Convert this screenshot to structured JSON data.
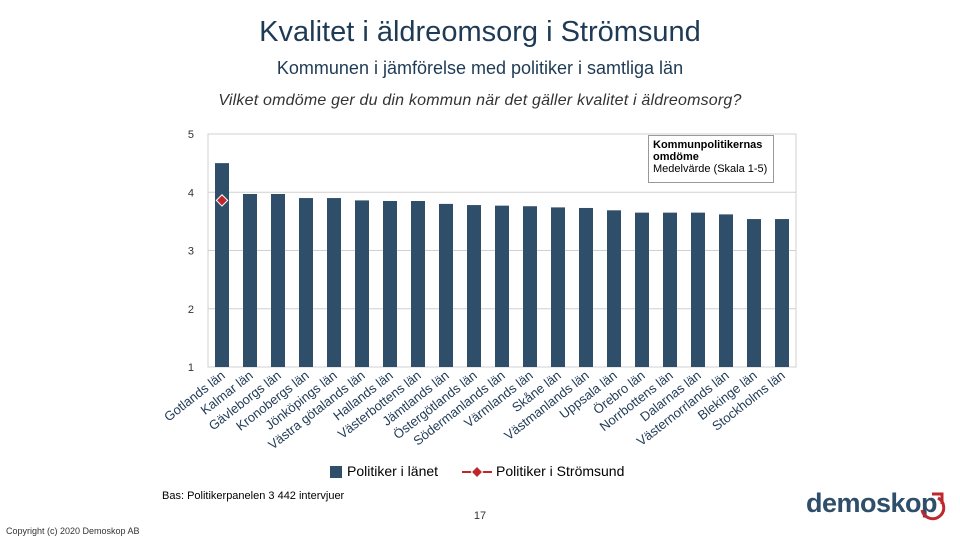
{
  "header": {
    "title": "Kvalitet i äldreomsorg i Strömsund",
    "subtitle": "Kommunen i jämförelse med politiker i samtliga län",
    "question": "Vilket omdöme ger du din kommun när det gäller kvalitet i äldreomsorg?"
  },
  "note": {
    "strong": "Kommunpolitikernas omdöme",
    "normal": "Medelvärde (Skala 1-5)"
  },
  "chart_data": {
    "type": "bar",
    "categories": [
      "Gotlands län",
      "Kalmar län",
      "Gävleborgs län",
      "Kronobergs län",
      "Jönköpings län",
      "Västra götalands län",
      "Hallands län",
      "Västerbottens län",
      "Jämtlands län",
      "Östergötlands län",
      "Södermanlands län",
      "Värmlands län",
      "Skåne län",
      "Västmanlands län",
      "Uppsala län",
      "Örebro län",
      "Norrbottens län",
      "Dalarnas län",
      "Västernorrlands län",
      "Blekinge län",
      "Stockholms län"
    ],
    "series": [
      {
        "name": "Politiker i länet",
        "type": "bar",
        "values": [
          4.5,
          3.97,
          3.97,
          3.9,
          3.9,
          3.86,
          3.85,
          3.85,
          3.8,
          3.78,
          3.77,
          3.76,
          3.74,
          3.73,
          3.69,
          3.65,
          3.65,
          3.65,
          3.62,
          3.54,
          3.54
        ]
      },
      {
        "name": "Politiker i Strömsund",
        "type": "marker",
        "values": [
          3.86,
          null,
          null,
          null,
          null,
          null,
          null,
          null,
          null,
          null,
          null,
          null,
          null,
          null,
          null,
          null,
          null,
          null,
          null,
          null,
          null
        ]
      }
    ],
    "ylim": [
      1,
      5
    ],
    "yticks": [
      "1",
      "2",
      "3",
      "4",
      "5"
    ],
    "colors": {
      "bar": "#2e4e6a",
      "marker": "#c0272d",
      "line": "#c0272d"
    }
  },
  "footer": {
    "source": "Bas: Politikerpanelen 3 442 intervjuer",
    "page": "17",
    "copyright": "Copyright (c) 2020 Demoskop AB",
    "logo": "demoskop"
  }
}
